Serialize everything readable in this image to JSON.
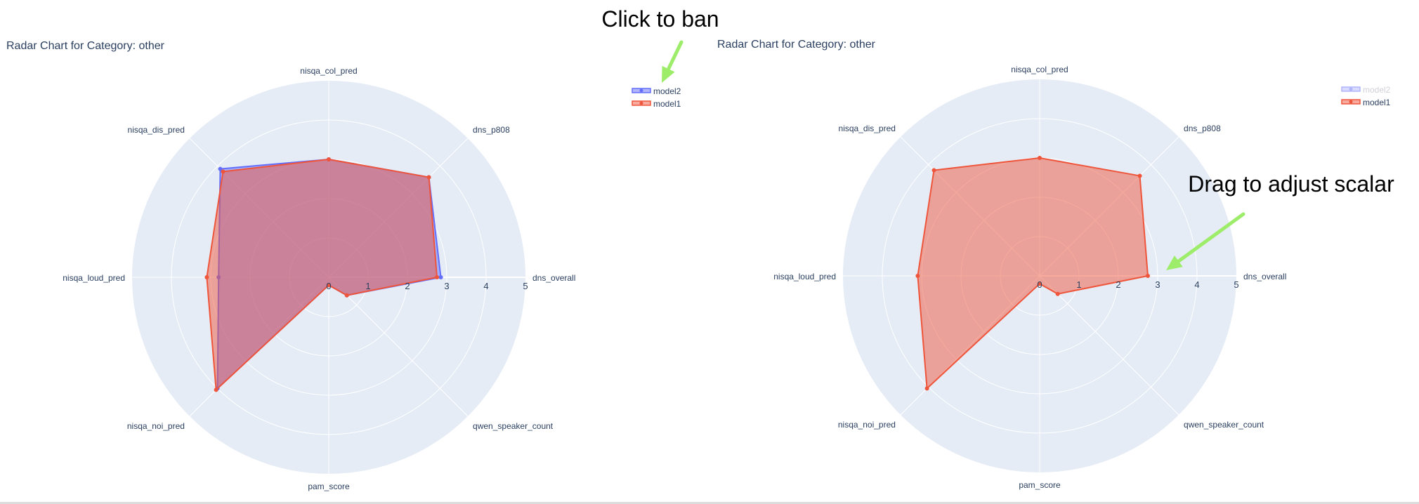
{
  "annotations": {
    "ban_text": "Click to ban",
    "drag_text": "Drag to adjust scalar",
    "arrow_color": "#9ded6a"
  },
  "colors": {
    "polar_bg": "#e5ecf6",
    "grid": "#ffffff",
    "text": "#2a3f5f",
    "model1": "#ef553b",
    "model2": "#636efa"
  },
  "chart_data": [
    {
      "type": "radar",
      "title": "Radar Chart for Category: other",
      "categories": [
        "dns_overall",
        "dns_p808",
        "nisqa_col_pred",
        "nisqa_dis_pred",
        "nisqa_loud_pred",
        "nisqa_noi_pred",
        "pam_score",
        "qwen_speaker_count"
      ],
      "radial_range": [
        0,
        5
      ],
      "radial_ticks": [
        "0",
        "1",
        "2",
        "3",
        "4",
        "5"
      ],
      "series": [
        {
          "name": "model2",
          "values": [
            2.85,
            3.6,
            3.0,
            3.9,
            2.8,
            4.0,
            0.2,
            0.65
          ],
          "visible": true
        },
        {
          "name": "model1",
          "values": [
            2.75,
            3.6,
            3.0,
            3.8,
            3.1,
            4.05,
            0.2,
            0.65
          ],
          "visible": true
        }
      ],
      "legend": "top-right",
      "grid": true
    },
    {
      "type": "radar",
      "title": "Radar Chart for Category: other",
      "categories": [
        "dns_overall",
        "dns_p808",
        "nisqa_col_pred",
        "nisqa_dis_pred",
        "nisqa_loud_pred",
        "nisqa_noi_pred",
        "pam_score",
        "qwen_speaker_count"
      ],
      "radial_range": [
        0,
        5
      ],
      "radial_ticks": [
        "0",
        "1",
        "2",
        "3",
        "4",
        "5"
      ],
      "series": [
        {
          "name": "model2",
          "values": [
            2.85,
            3.6,
            3.0,
            3.9,
            2.8,
            4.0,
            0.2,
            0.65
          ],
          "visible": false
        },
        {
          "name": "model1",
          "values": [
            2.75,
            3.6,
            3.0,
            3.8,
            3.1,
            4.05,
            0.2,
            0.65
          ],
          "visible": true
        }
      ],
      "legend": "top-right",
      "grid": true
    }
  ]
}
